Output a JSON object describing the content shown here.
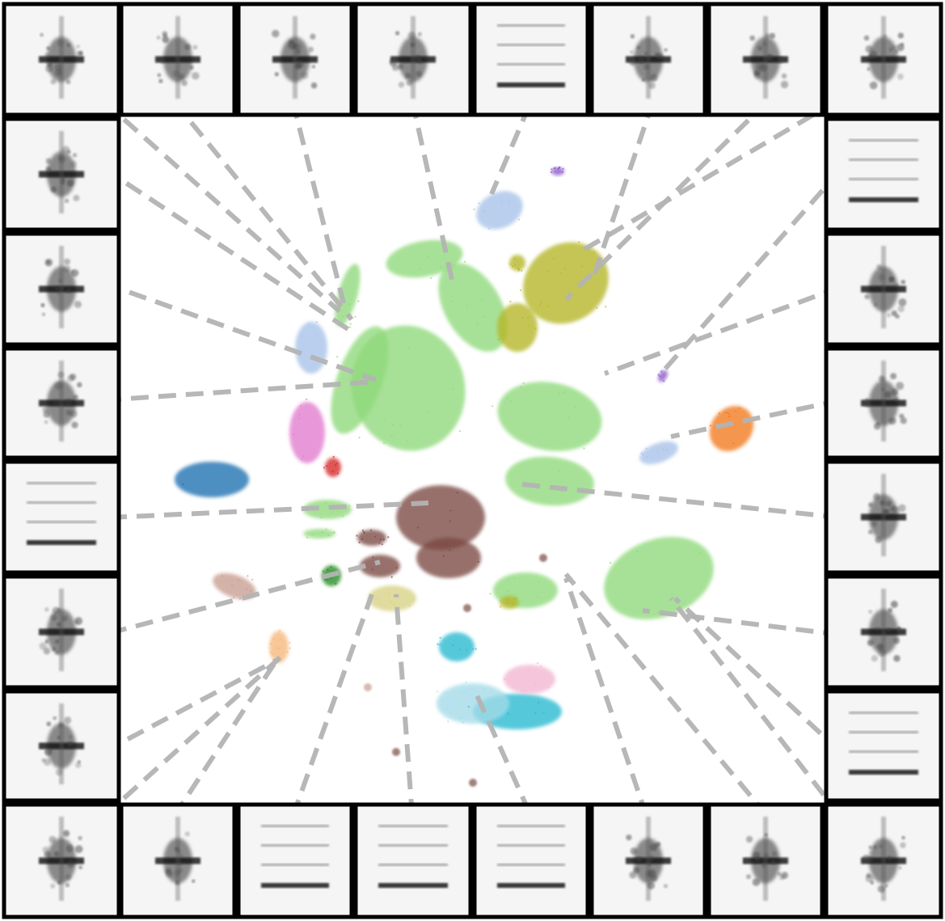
{
  "figure": {
    "title": "",
    "thumbnail_count": 28,
    "thumbnail_style": "grayscale spectrogram",
    "connector_style": "gray dashed",
    "grid": false,
    "legend": "none"
  },
  "palette": {
    "light_green": "#8fd97a",
    "olive": "#b5b628",
    "brown": "#7a4a42",
    "blue": "#1f6fb0",
    "light_blue": "#a7c2e8",
    "pink": "#e27bcf",
    "red": "#d62728",
    "orange": "#f2791f",
    "cyan": "#27b9d0",
    "light_cyan": "#a4dbe8",
    "light_pink": "#f2b6d2",
    "tan": "#d8d283",
    "dark_green": "#228b22",
    "light_brown": "#c79d90",
    "light_orange": "#f7b77a",
    "purple": "#8a55c8",
    "thumb_border": "#000000",
    "connector": "#b4b4b4"
  }
}
